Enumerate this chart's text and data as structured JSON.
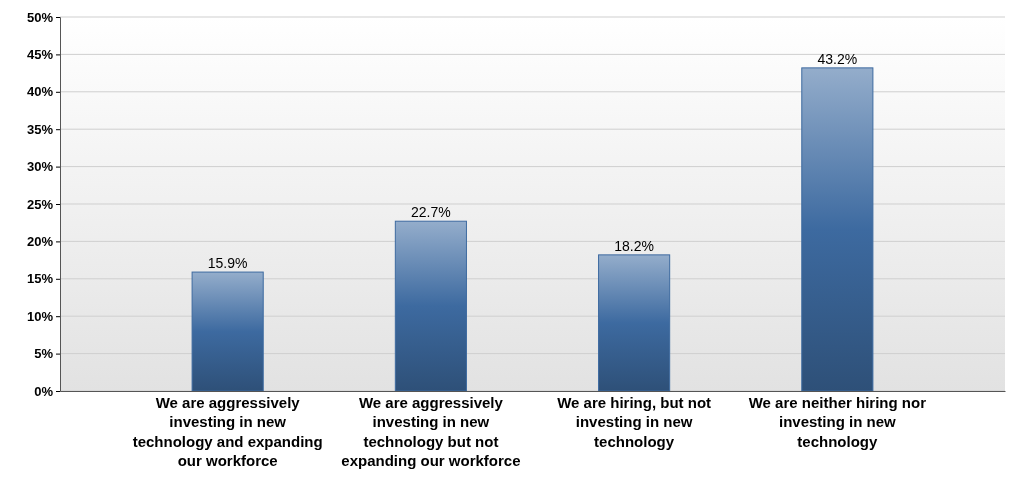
{
  "chart_data": {
    "type": "bar",
    "categories": [
      "We are aggressively investing in new technology and expanding our workforce",
      "We are aggressively investing in new technology but not expanding our workforce",
      "We are hiring, but not investing in new technology",
      "We are neither hiring nor investing in new technology"
    ],
    "values": [
      15.9,
      22.7,
      18.2,
      43.2
    ],
    "value_labels": [
      "15.9%",
      "22.7%",
      "18.2%",
      "43.2%"
    ],
    "color": "#3d6aa0",
    "ylim": [
      0,
      50
    ],
    "yticks": [
      {
        "value": 0,
        "label": "0%"
      },
      {
        "value": 5,
        "label": "5%"
      },
      {
        "value": 10,
        "label": "10%"
      },
      {
        "value": 15,
        "label": "15%"
      },
      {
        "value": 20,
        "label": "20%"
      },
      {
        "value": 25,
        "label": "25%"
      },
      {
        "value": 30,
        "label": "30%"
      },
      {
        "value": 35,
        "label": "35%"
      },
      {
        "value": 40,
        "label": "40%"
      },
      {
        "value": 45,
        "label": "45%"
      },
      {
        "value": 50,
        "label": "50%"
      }
    ],
    "grid": "y"
  }
}
